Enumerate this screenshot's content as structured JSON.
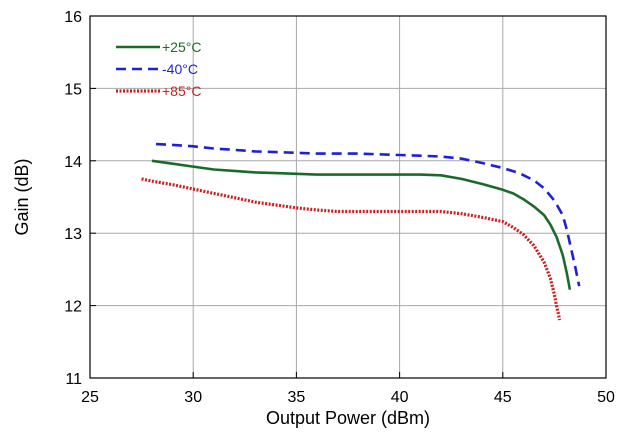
{
  "chart_data": {
    "type": "line",
    "xlabel": "Output Power (dBm)",
    "ylabel": "Gain (dB)",
    "xlim": [
      25,
      50
    ],
    "ylim": [
      11,
      16
    ],
    "xticks": [
      25,
      30,
      35,
      40,
      45,
      50
    ],
    "yticks": [
      11,
      12,
      13,
      14,
      15,
      16
    ],
    "grid": true,
    "legend": "top-left",
    "series": [
      {
        "name": "+25°C",
        "color": "#1a6b2a",
        "dash": "solid",
        "x": [
          28.0,
          29.0,
          30.0,
          31.0,
          32.0,
          33.0,
          34.0,
          35.0,
          36.0,
          37.0,
          38.0,
          39.0,
          40.0,
          41.0,
          42.0,
          43.0,
          44.0,
          45.0,
          45.5,
          46.0,
          46.5,
          47.0,
          47.3,
          47.6,
          47.9,
          48.1,
          48.25
        ],
        "y": [
          14.0,
          13.96,
          13.92,
          13.88,
          13.86,
          13.84,
          13.83,
          13.82,
          13.81,
          13.81,
          13.81,
          13.81,
          13.81,
          13.81,
          13.8,
          13.75,
          13.68,
          13.6,
          13.55,
          13.47,
          13.37,
          13.25,
          13.12,
          12.95,
          12.7,
          12.45,
          12.22
        ]
      },
      {
        "name": "-40°C",
        "color": "#1f1fd6",
        "dash": "dashed",
        "x": [
          28.2,
          29.0,
          30.0,
          31.0,
          32.0,
          33.0,
          34.0,
          35.0,
          36.0,
          37.0,
          38.0,
          39.0,
          40.0,
          41.0,
          42.0,
          43.0,
          44.0,
          45.0,
          45.8,
          46.5,
          47.0,
          47.5,
          47.9,
          48.1,
          48.3,
          48.5,
          48.7
        ],
        "y": [
          14.23,
          14.22,
          14.2,
          14.17,
          14.15,
          14.13,
          14.12,
          14.11,
          14.1,
          14.1,
          14.1,
          14.09,
          14.08,
          14.07,
          14.06,
          14.03,
          13.97,
          13.9,
          13.83,
          13.73,
          13.62,
          13.45,
          13.25,
          13.05,
          12.8,
          12.55,
          12.27
        ]
      },
      {
        "name": "+85°C",
        "color": "#cc1f1f",
        "dash": "dotted",
        "x": [
          27.5,
          28.0,
          29.0,
          30.0,
          31.0,
          32.0,
          33.0,
          34.0,
          35.0,
          36.0,
          37.0,
          38.0,
          39.0,
          40.0,
          41.0,
          42.0,
          43.0,
          44.0,
          45.0,
          45.5,
          46.0,
          46.5,
          47.0,
          47.3,
          47.5,
          47.6,
          47.7,
          47.75
        ],
        "y": [
          13.75,
          13.72,
          13.67,
          13.61,
          13.55,
          13.49,
          13.43,
          13.39,
          13.35,
          13.32,
          13.3,
          13.3,
          13.3,
          13.3,
          13.3,
          13.3,
          13.27,
          13.22,
          13.16,
          13.08,
          12.98,
          12.83,
          12.6,
          12.38,
          12.15,
          12.0,
          11.88,
          11.8
        ]
      }
    ]
  }
}
